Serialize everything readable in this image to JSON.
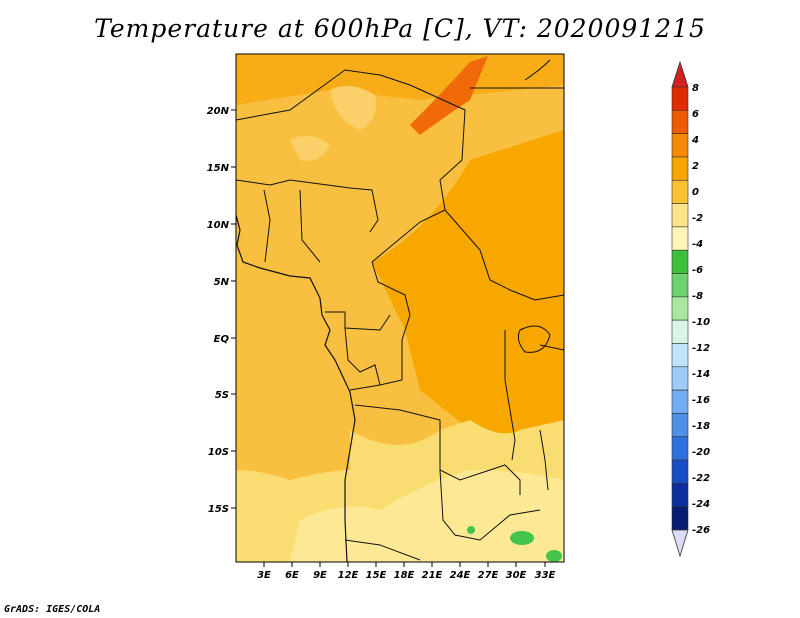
{
  "title": "Temperature at 600hPa [C], VT: 2020091215",
  "footer": "GrADS: IGES/COLA",
  "map": {
    "lat_labels": [
      "20N",
      "15N",
      "10N",
      "5N",
      "EQ",
      "5S",
      "10S",
      "15S"
    ],
    "lon_labels": [
      "3E",
      "6E",
      "9E",
      "12E",
      "15E",
      "18E",
      "21E",
      "24E",
      "27E",
      "30E",
      "33E"
    ]
  },
  "colorbar": {
    "labels": [
      "8",
      "6",
      "4",
      "2",
      "0",
      "-2",
      "-4",
      "-6",
      "-8",
      "-10",
      "-12",
      "-14",
      "-16",
      "-18",
      "-20",
      "-22",
      "-24",
      "-26"
    ],
    "colors": [
      "#e02a00",
      "#f05a00",
      "#f58a00",
      "#f8a500",
      "#f9c030",
      "#fce48a",
      "#fff6b8",
      "#3cbf3c",
      "#6fd36f",
      "#a8e8a0",
      "#d8f5e8",
      "#c2e4fa",
      "#9ccbf5",
      "#73aff0",
      "#4e90e8",
      "#2f70dc",
      "#1a4ec6",
      "#0c2fa0",
      "#061c6e"
    ],
    "arrow_top_color": "#d42020",
    "arrow_bottom_color": "#dcdcf8"
  }
}
